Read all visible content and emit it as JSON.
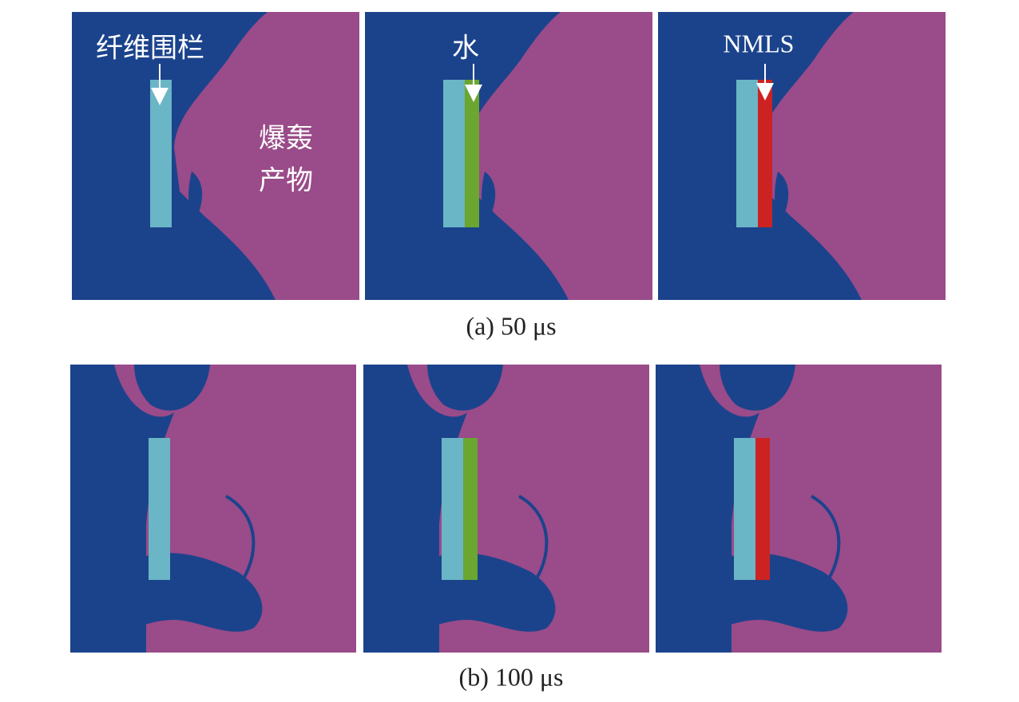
{
  "figure": {
    "labels": {
      "fiber": "纤维围栏",
      "water": "水",
      "nmls": "NMLS",
      "products_line1": "爆轰",
      "products_line2": "产物"
    },
    "captions": [
      "(a) 50 μs",
      "(b) 100 μs"
    ]
  }
}
